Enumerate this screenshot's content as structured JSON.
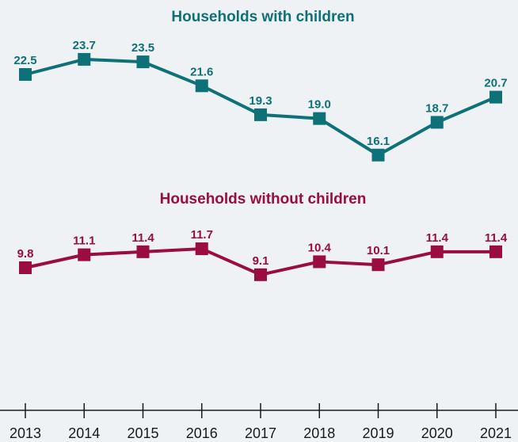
{
  "chart_data": {
    "type": "line",
    "x": [
      "2013",
      "2014",
      "2015",
      "2016",
      "2017",
      "2018",
      "2019",
      "2020",
      "2021"
    ],
    "series": [
      {
        "name": "Households with children",
        "values": [
          22.5,
          23.7,
          23.5,
          21.6,
          19.3,
          19.0,
          16.1,
          18.7,
          20.7
        ],
        "labels": [
          "22.5",
          "23.7",
          "23.5",
          "21.6",
          "19.3",
          "19.0",
          "16.1",
          "18.7",
          "20.7"
        ],
        "color": "#0e7178"
      },
      {
        "name": "Households without children",
        "values": [
          9.8,
          11.1,
          11.4,
          11.7,
          9.1,
          10.4,
          10.1,
          11.4,
          11.4
        ],
        "labels": [
          "9.8",
          "11.1",
          "11.4",
          "11.7",
          "9.1",
          "10.4",
          "10.1",
          "11.4",
          "11.4"
        ],
        "color": "#9b0c40"
      }
    ],
    "ylim": [
      0,
      25
    ],
    "grid": false,
    "legend": "series titles placed above each line",
    "background": "#eef2f4",
    "axis_color": "#1a1a1a"
  }
}
